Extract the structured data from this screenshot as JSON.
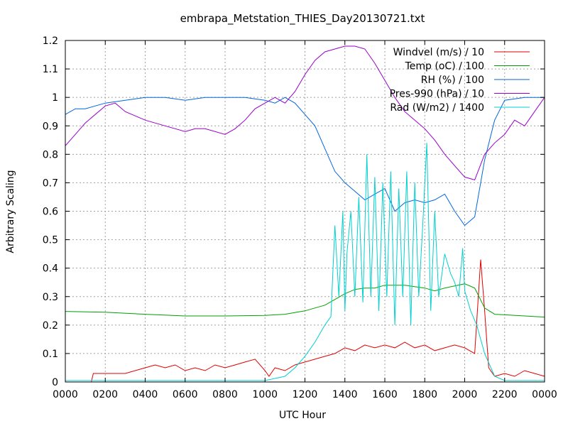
{
  "chart_data": {
    "type": "line",
    "title": "embrapa_Metstation_THIES_Day20130721.txt",
    "xlabel": "UTC Hour",
    "ylabel": "Arbitrary Scaling",
    "xlim": [
      0,
      2400
    ],
    "ylim": [
      0,
      1.2
    ],
    "x_tick_labels": [
      "0000",
      "0200",
      "0400",
      "0600",
      "0800",
      "1000",
      "1200",
      "1400",
      "1600",
      "1800",
      "2000",
      "2200",
      "0000"
    ],
    "y_tick_labels": [
      "0",
      "0.1",
      "0.2",
      "0.3",
      "0.4",
      "0.5",
      "0.6",
      "0.7",
      "0.8",
      "0.9",
      "1",
      "1.1",
      "1.2"
    ],
    "grid": true,
    "legend_position": "top-right",
    "series": [
      {
        "name": "Windvel (m/s) / 10",
        "color": "#e00000",
        "x": [
          0,
          130,
          140,
          300,
          400,
          450,
          500,
          550,
          600,
          650,
          700,
          750,
          800,
          850,
          900,
          950,
          1000,
          1020,
          1050,
          1100,
          1150,
          1200,
          1250,
          1300,
          1350,
          1400,
          1450,
          1500,
          1550,
          1600,
          1650,
          1700,
          1750,
          1800,
          1850,
          1900,
          1950,
          2000,
          2050,
          2080,
          2100,
          2120,
          2150,
          2200,
          2250,
          2300,
          2350,
          2400
        ],
        "y": [
          0,
          0,
          0.03,
          0.03,
          0.05,
          0.06,
          0.05,
          0.06,
          0.04,
          0.05,
          0.04,
          0.06,
          0.05,
          0.06,
          0.07,
          0.08,
          0.04,
          0.02,
          0.05,
          0.04,
          0.06,
          0.07,
          0.08,
          0.09,
          0.1,
          0.12,
          0.11,
          0.13,
          0.12,
          0.13,
          0.12,
          0.14,
          0.12,
          0.13,
          0.11,
          0.12,
          0.13,
          0.12,
          0.1,
          0.43,
          0.25,
          0.05,
          0.02,
          0.03,
          0.02,
          0.04,
          0.03,
          0.02
        ]
      },
      {
        "name": "Temp (oC) / 100",
        "color": "#00a000",
        "x": [
          0,
          200,
          400,
          600,
          800,
          1000,
          1100,
          1200,
          1300,
          1350,
          1400,
          1450,
          1500,
          1550,
          1600,
          1700,
          1800,
          1850,
          1900,
          2000,
          2050,
          2100,
          2150,
          2200,
          2300,
          2400
        ],
        "y": [
          0.248,
          0.245,
          0.238,
          0.232,
          0.232,
          0.234,
          0.238,
          0.25,
          0.27,
          0.29,
          0.31,
          0.325,
          0.33,
          0.33,
          0.34,
          0.34,
          0.33,
          0.32,
          0.33,
          0.345,
          0.33,
          0.26,
          0.238,
          0.236,
          0.232,
          0.228
        ]
      },
      {
        "name": "RH (%) / 100",
        "color": "#0066dd",
        "x": [
          0,
          50,
          100,
          200,
          300,
          400,
          500,
          600,
          700,
          800,
          900,
          1000,
          1050,
          1100,
          1150,
          1200,
          1250,
          1300,
          1350,
          1400,
          1450,
          1500,
          1550,
          1600,
          1650,
          1700,
          1750,
          1800,
          1850,
          1900,
          1950,
          2000,
          2050,
          2100,
          2150,
          2200,
          2300,
          2400
        ],
        "y": [
          0.94,
          0.96,
          0.96,
          0.98,
          0.99,
          1.0,
          1.0,
          0.99,
          1.0,
          1.0,
          1.0,
          0.99,
          0.98,
          1.0,
          0.98,
          0.94,
          0.9,
          0.82,
          0.74,
          0.7,
          0.67,
          0.64,
          0.66,
          0.68,
          0.6,
          0.63,
          0.64,
          0.63,
          0.64,
          0.66,
          0.6,
          0.55,
          0.58,
          0.78,
          0.92,
          0.99,
          1.0,
          1.0
        ]
      },
      {
        "name": "Pres-990 (hPa) / 10",
        "color": "#9900cc",
        "x": [
          0,
          50,
          100,
          200,
          250,
          300,
          400,
          500,
          600,
          650,
          700,
          800,
          850,
          900,
          950,
          1000,
          1050,
          1100,
          1150,
          1200,
          1250,
          1300,
          1350,
          1400,
          1450,
          1500,
          1550,
          1600,
          1650,
          1700,
          1750,
          1800,
          1850,
          1900,
          1950,
          2000,
          2050,
          2100,
          2150,
          2200,
          2250,
          2300,
          2350,
          2400
        ],
        "y": [
          0.83,
          0.87,
          0.91,
          0.97,
          0.98,
          0.95,
          0.92,
          0.9,
          0.88,
          0.89,
          0.89,
          0.87,
          0.89,
          0.92,
          0.96,
          0.98,
          1.0,
          0.98,
          1.02,
          1.08,
          1.13,
          1.16,
          1.17,
          1.18,
          1.18,
          1.17,
          1.12,
          1.06,
          1.0,
          0.95,
          0.92,
          0.89,
          0.85,
          0.8,
          0.76,
          0.72,
          0.71,
          0.8,
          0.84,
          0.87,
          0.92,
          0.9,
          0.95,
          1.0
        ]
      },
      {
        "name": "Rad (W/m2) / 1400",
        "color": "#00d0d0",
        "x": [
          0,
          1000,
          1100,
          1150,
          1200,
          1250,
          1300,
          1330,
          1350,
          1370,
          1390,
          1400,
          1410,
          1430,
          1450,
          1470,
          1490,
          1510,
          1530,
          1550,
          1570,
          1590,
          1610,
          1630,
          1650,
          1670,
          1690,
          1710,
          1730,
          1750,
          1770,
          1790,
          1810,
          1830,
          1850,
          1870,
          1900,
          1930,
          1950,
          1970,
          1990,
          2000,
          2030,
          2060,
          2100,
          2150,
          2200,
          2400
        ],
        "y": [
          0.005,
          0.005,
          0.02,
          0.05,
          0.09,
          0.14,
          0.2,
          0.23,
          0.55,
          0.3,
          0.6,
          0.25,
          0.45,
          0.6,
          0.3,
          0.65,
          0.28,
          0.8,
          0.3,
          0.72,
          0.25,
          0.7,
          0.3,
          0.74,
          0.2,
          0.68,
          0.3,
          0.74,
          0.2,
          0.7,
          0.3,
          0.55,
          0.84,
          0.25,
          0.6,
          0.3,
          0.45,
          0.38,
          0.35,
          0.3,
          0.47,
          0.32,
          0.25,
          0.2,
          0.1,
          0.02,
          0.005,
          0.005
        ]
      }
    ]
  }
}
